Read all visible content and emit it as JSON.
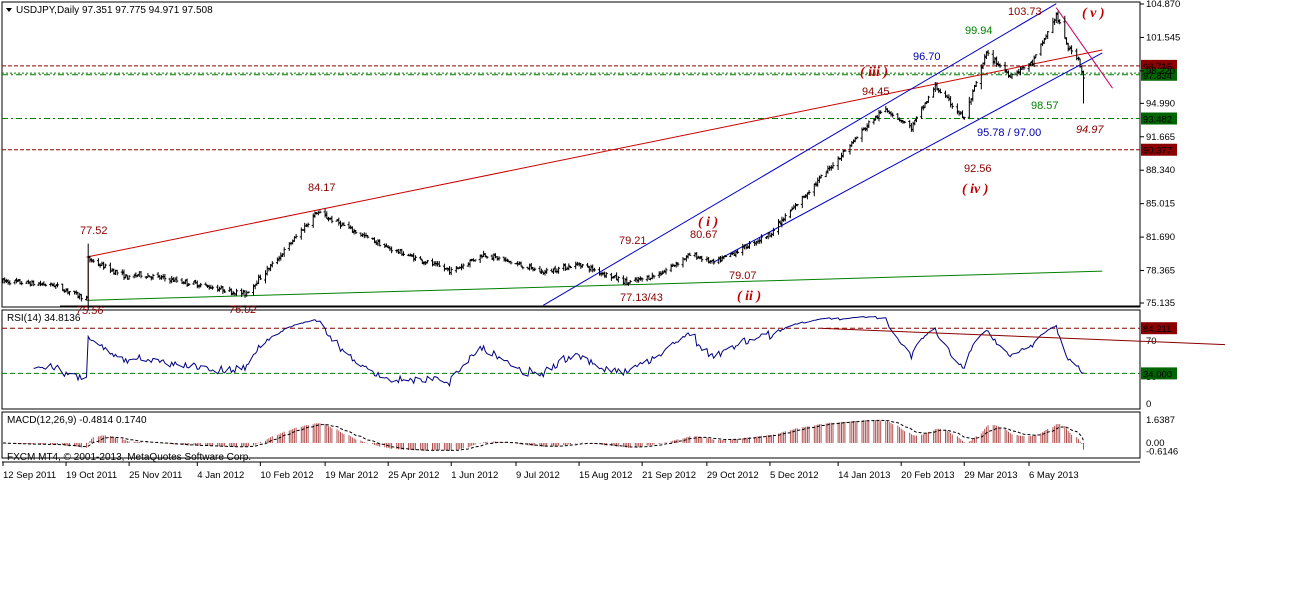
{
  "colors": {
    "price": "#000000",
    "channel": "#0000cc",
    "redline": "#cc0000",
    "greenline": "#008000",
    "darkred": "#8b0000",
    "rsi": "#000080",
    "macd_hist": "#b05050",
    "green_label": "#008000",
    "blue_label": "#0000aa",
    "label_red_bg": "#8b0000",
    "label_green_bg": "#006400"
  },
  "header": {
    "title": "USDJPY,Daily  97.351 97.775 94.971 97.508",
    "rsi_title": "RSI(14) 34.8136",
    "macd_title": "MACD(12,26,9) -0.4814 0.1740",
    "copyright": "FXCM MT4, © 2001-2013, MetaQuotes Software Corp."
  },
  "chart_data": [
    {
      "type": "candlestick",
      "title": "USDJPY,Daily  97.351 97.775 94.971 97.508",
      "ylim": [
        74.5,
        105.5
      ],
      "y_ticks": [
        "104.870",
        "101.545",
        "98.220",
        "94.990",
        "91.665",
        "88.340",
        "85.015",
        "81.690",
        "78.365",
        "75.135"
      ],
      "x_ticks": [
        "12 Sep 2011",
        "19 Oct 2011",
        "25 Nov 2011",
        "4 Jan 2012",
        "10 Feb 2012",
        "19 Mar 2012",
        "25 Apr 2012",
        "1 Jun 2012",
        "9 Jul 2012",
        "15 Aug 2012",
        "21 Sep 2012",
        "29 Oct 2012",
        "5 Dec 2012",
        "14 Jan 2013",
        "20 Feb 2013",
        "29 Mar 2013",
        "6 May 2013"
      ],
      "price_anchors": [
        {
          "date": "12 Sep 2011",
          "close": 77.3
        },
        {
          "date": "12 Oct 2011",
          "close": 76.9
        },
        {
          "date": "31 Oct 2011",
          "close": 75.56
        },
        {
          "date": "1 Nov 2011",
          "close": 79.5
        },
        {
          "date": "25 Nov 2011",
          "close": 77.6
        },
        {
          "date": "1 Dec 2011",
          "close": 78.0
        },
        {
          "date": "4 Jan 2012",
          "close": 77.0
        },
        {
          "date": "1 Feb 2012",
          "close": 76.02
        },
        {
          "date": "20 Feb 2012",
          "close": 79.5
        },
        {
          "date": "14 Mar 2012",
          "close": 84.17
        },
        {
          "date": "25 Apr 2012",
          "close": 80.6
        },
        {
          "date": "1 Jun 2012",
          "close": 78.3
        },
        {
          "date": "20 Jun 2012",
          "close": 80.0
        },
        {
          "date": "25 Jul 2012",
          "close": 78.2
        },
        {
          "date": "15 Aug 2012",
          "close": 79.0
        },
        {
          "date": "13 Sep 2012",
          "close": 77.13
        },
        {
          "date": "1 Oct 2012",
          "close": 78.0
        },
        {
          "date": "20 Oct 2012",
          "close": 80.0
        },
        {
          "date": "2 Nov 2012",
          "close": 79.07
        },
        {
          "date": "5 Dec 2012",
          "close": 82.0
        },
        {
          "date": "14 Jan 2013",
          "close": 89.5
        },
        {
          "date": "1 Feb 2013",
          "close": 93.0
        },
        {
          "date": "11 Feb 2013",
          "close": 94.45
        },
        {
          "date": "26 Feb 2013",
          "close": 92.56
        },
        {
          "date": "12 Mar 2013",
          "close": 96.7
        },
        {
          "date": "29 Mar 2013",
          "close": 93.5
        },
        {
          "date": "11 Apr 2013",
          "close": 99.94
        },
        {
          "date": "25 Apr 2013",
          "close": 97.8
        },
        {
          "date": "8 May 2013",
          "close": 99.0
        },
        {
          "date": "22 May 2013",
          "close": 103.73
        },
        {
          "date": "29 May 2013",
          "close": 100.5
        },
        {
          "date": "4 Jun 2013",
          "close": 99.5
        },
        {
          "date": "7 Jun 2013",
          "close": 97.508
        }
      ],
      "horizontal_lines": [
        {
          "value": 98.715,
          "label": "98.715",
          "style": "darkred-dash"
        },
        {
          "value": 97.834,
          "label": "97.834",
          "style": "green-dash"
        },
        {
          "value": 93.482,
          "label": "93.482",
          "style": "green-dash"
        },
        {
          "value": 90.377,
          "label": "90.377",
          "style": "darkred-dash"
        }
      ],
      "price_labels": [
        "98.715",
        "97.834",
        "93.482",
        "90.377"
      ],
      "annotations": [
        {
          "text": "77.52",
          "color": "darkred"
        },
        {
          "text": "75.56",
          "color": "darkred"
        },
        {
          "text": "76.02",
          "color": "darkred"
        },
        {
          "text": "84.17",
          "color": "darkred"
        },
        {
          "text": "79.21",
          "color": "darkred"
        },
        {
          "text": "80.67",
          "color": "darkred"
        },
        {
          "text": "79.07",
          "color": "darkred"
        },
        {
          "text": "77.13/43",
          "color": "darkred"
        },
        {
          "text": "94.45",
          "color": "darkred"
        },
        {
          "text": "96.70",
          "color": "blue"
        },
        {
          "text": "99.94",
          "color": "green"
        },
        {
          "text": "103.73",
          "color": "darkred"
        },
        {
          "text": "98.57",
          "color": "green"
        },
        {
          "text": "95.78 / 97.00",
          "color": "blue"
        },
        {
          "text": "92.56",
          "color": "darkred"
        },
        {
          "text": "94.97",
          "color": "darkred"
        }
      ],
      "waves": [
        "( i )",
        "( ii )",
        "( iii )",
        "( iv )",
        "( v )"
      ]
    },
    {
      "type": "line",
      "title": "RSI(14) 34.8136",
      "ylim": [
        0,
        100
      ],
      "y_ticks": [
        "70",
        "30",
        "0"
      ],
      "levels": [
        {
          "value": 84.211,
          "label": "84.211"
        },
        {
          "value": 34.0,
          "label": "34.000"
        }
      ],
      "last_value": 34.8136
    },
    {
      "type": "bar",
      "title": "MACD(12,26,9) -0.4814 0.1740",
      "y_ticks": [
        "1.6387",
        "0.00",
        "-0.6146"
      ],
      "last_macd": -0.4814,
      "last_signal": 0.174
    }
  ]
}
